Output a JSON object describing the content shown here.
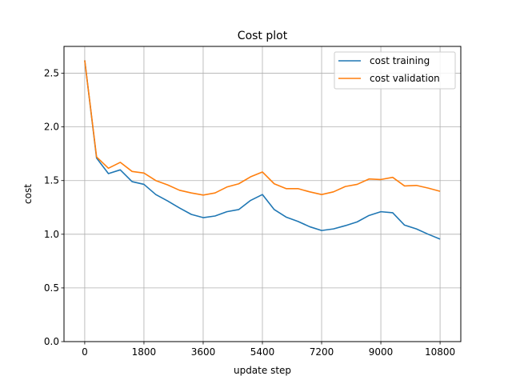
{
  "chart_data": {
    "type": "line",
    "title": "Cost plot",
    "xlabel": "update step",
    "ylabel": "cost",
    "xlim": [
      -630,
      11430
    ],
    "ylim": [
      0.0,
      2.75
    ],
    "x_ticks": [
      0,
      1800,
      3600,
      5400,
      7200,
      9000,
      10800
    ],
    "y_ticks": [
      0.0,
      0.5,
      1.0,
      1.5,
      2.0,
      2.5
    ],
    "y_tick_labels": [
      "0.0",
      "0.5",
      "1.0",
      "1.5",
      "2.0",
      "2.5"
    ],
    "grid": true,
    "legend_position": "top-right",
    "x": [
      0,
      360,
      720,
      1080,
      1440,
      1800,
      2160,
      2520,
      2880,
      3240,
      3600,
      3960,
      4320,
      4680,
      5040,
      5400,
      5760,
      6120,
      6480,
      6840,
      7200,
      7560,
      7920,
      8280,
      8640,
      9000,
      9360,
      9720,
      10080,
      10440,
      10800
    ],
    "series": [
      {
        "name": "cost training",
        "color": "#1f77b4",
        "values": [
          2.62,
          1.71,
          1.565,
          1.6,
          1.49,
          1.465,
          1.37,
          1.31,
          1.245,
          1.185,
          1.155,
          1.17,
          1.21,
          1.23,
          1.315,
          1.37,
          1.23,
          1.16,
          1.12,
          1.07,
          1.035,
          1.05,
          1.08,
          1.115,
          1.175,
          1.21,
          1.2,
          1.085,
          1.05,
          1.0,
          0.955
        ]
      },
      {
        "name": "cost validation",
        "color": "#ff7f0e",
        "values": [
          2.62,
          1.72,
          1.615,
          1.67,
          1.585,
          1.57,
          1.5,
          1.46,
          1.41,
          1.385,
          1.365,
          1.385,
          1.44,
          1.47,
          1.535,
          1.58,
          1.47,
          1.425,
          1.425,
          1.395,
          1.37,
          1.395,
          1.445,
          1.465,
          1.515,
          1.51,
          1.53,
          1.45,
          1.455,
          1.43,
          1.4
        ]
      }
    ]
  }
}
